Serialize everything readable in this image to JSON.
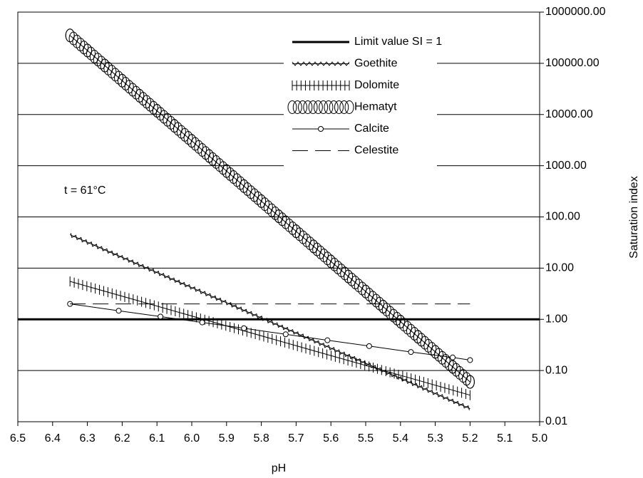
{
  "chart_data": {
    "type": "line",
    "x_label": "pH",
    "y_label": "Saturation index",
    "annotation": "t = 61°C",
    "log_y": true,
    "grid": true,
    "legend": "upper center",
    "xlim": [
      6.5,
      5.0
    ],
    "xticks": [
      6.5,
      6.4,
      6.3,
      6.2,
      6.1,
      {
        "value": 6,
        "label": "6.0"
      },
      5.9,
      5.8,
      5.7,
      5.6,
      5.5,
      5.4,
      5.3,
      5.2,
      5.1,
      {
        "value": 5,
        "label": "5.0"
      }
    ],
    "ylim": [
      0.01,
      1000000
    ],
    "yticks": [
      {
        "value": 0.01,
        "label": "0.01"
      },
      {
        "value": 0.1,
        "label": "0.10"
      },
      {
        "value": 1,
        "label": "1.00"
      },
      {
        "value": 10,
        "label": "10.00"
      },
      {
        "value": 100,
        "label": "100.00"
      },
      {
        "value": 1000,
        "label": "1000.00"
      },
      {
        "value": 10000,
        "label": "10000.00"
      },
      {
        "value": 100000,
        "label": "100000.00"
      },
      {
        "value": 1000000,
        "label": "1000000.00"
      }
    ],
    "series": [
      {
        "name": "Limit value SI = 1",
        "color": "#000000",
        "line_style": "thick",
        "x": [
          6.5,
          5.0
        ],
        "values": [
          1,
          1
        ]
      },
      {
        "name": "Goethite",
        "color": "#000000",
        "line_style": "zigzag",
        "x": [
          6.35,
          6.12,
          5.89,
          5.66,
          5.43,
          5.2
        ],
        "values": [
          45,
          9.4,
          1.97,
          0.41,
          0.086,
          0.018
        ]
      },
      {
        "name": "Dolomite",
        "color": "#000000",
        "line_style": "ticked",
        "x": [
          6.35,
          6.12,
          5.89,
          5.66,
          5.43,
          5.2
        ],
        "values": [
          5.5,
          1.98,
          0.71,
          0.255,
          0.092,
          0.033
        ]
      },
      {
        "name": "Hematyt",
        "color": "#000000",
        "line_style": "rings",
        "x": [
          6.35,
          6.3,
          6.25,
          6.2,
          6.15,
          6.1,
          6.05,
          6.0,
          5.95,
          5.9,
          5.85,
          5.8,
          5.75,
          5.7,
          5.65,
          5.6,
          5.55,
          5.5,
          5.45,
          5.4,
          5.35,
          5.3,
          5.25,
          5.2
        ],
        "values": [
          350000,
          177800,
          90360,
          45810,
          23280,
          11830,
          6012,
          3055,
          1549,
          787,
          400,
          203,
          103,
          52.4,
          26.6,
          13.5,
          6.87,
          3.49,
          1.77,
          0.9,
          0.457,
          0.232,
          0.118,
          0.06
        ]
      },
      {
        "name": "Calcite",
        "color": "#000000",
        "line_style": "circles",
        "x": [
          6.35,
          6.21,
          6.09,
          5.97,
          5.85,
          5.73,
          5.61,
          5.49,
          5.37,
          5.25,
          5.2
        ],
        "values": [
          2.0,
          1.47,
          1.13,
          0.87,
          0.67,
          0.51,
          0.39,
          0.3,
          0.23,
          0.18,
          0.16
        ]
      },
      {
        "name": "Celestite",
        "color": "#000000",
        "line_style": "dashed",
        "x": [
          6.35,
          5.2
        ],
        "values": [
          2.0,
          2.0
        ]
      }
    ]
  }
}
